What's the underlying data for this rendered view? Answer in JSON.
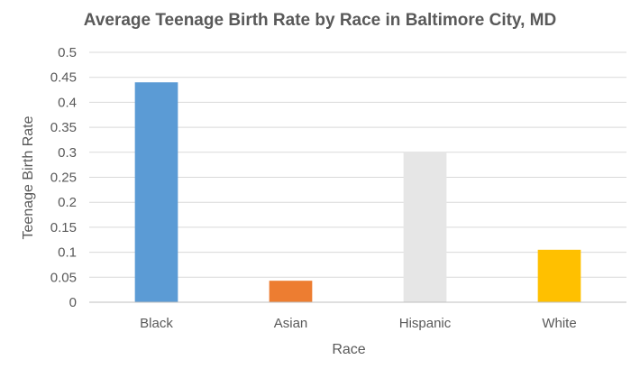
{
  "chart_data": {
    "type": "bar",
    "title": "Average Teenage Birth Rate by Race in Baltimore City, MD",
    "xlabel": "Race",
    "ylabel": "Teenage Birth Rate",
    "categories": [
      "Black",
      "Asian",
      "Hispanic",
      "White"
    ],
    "values": [
      0.44,
      0.043,
      0.3,
      0.105
    ],
    "colors": [
      "#5B9BD5",
      "#ED7D31",
      "#E6E6E6",
      "#FFC000"
    ],
    "ylim": [
      0,
      0.5
    ],
    "yticks": [
      "0",
      "0.05",
      "0.1",
      "0.15",
      "0.2",
      "0.25",
      "0.3",
      "0.35",
      "0.4",
      "0.45",
      "0.5"
    ],
    "grid": true,
    "legend": "none"
  }
}
